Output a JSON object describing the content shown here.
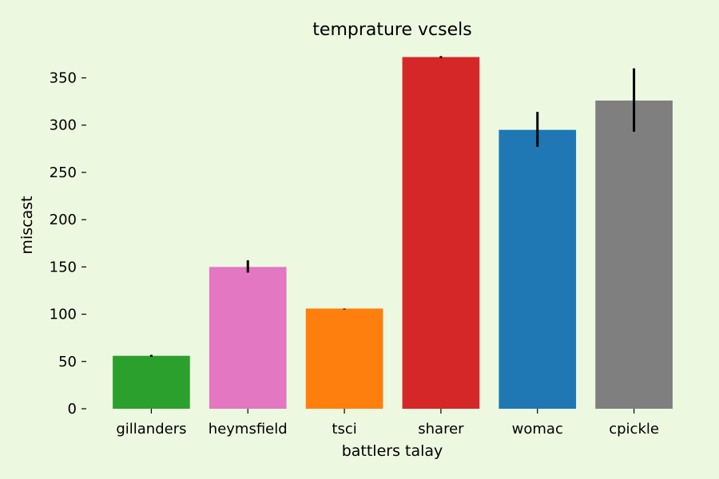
{
  "chart_data": {
    "type": "bar",
    "title": "temprature vcsels",
    "xlabel": "battlers talay",
    "ylabel": "miscast",
    "categories": [
      "gillanders",
      "heymsfield",
      "tsci",
      "sharer",
      "womac",
      "cpickle"
    ],
    "values": [
      56,
      150,
      106,
      372,
      295,
      326
    ],
    "error_low": [
      55,
      144,
      105,
      371,
      277,
      293
    ],
    "error_high": [
      57,
      157,
      106,
      373,
      314,
      360
    ],
    "colors": [
      "#2ca02c",
      "#e377c2",
      "#ff7f0e",
      "#d62728",
      "#1f77b4",
      "#7f7f7f"
    ],
    "yticks": [
      0,
      50,
      100,
      150,
      200,
      250,
      300,
      350
    ],
    "ylim": [
      0,
      380
    ],
    "grid": false
  }
}
